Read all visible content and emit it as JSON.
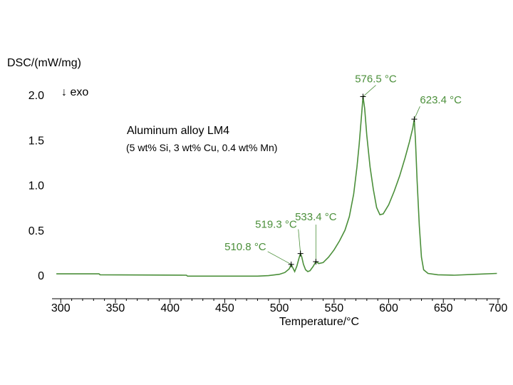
{
  "chart_data": {
    "type": "line",
    "ylabel": "DSC/(mW/mg)",
    "xlabel": "Temperature/°C",
    "exo_label": "↓ exo",
    "note_title": "Aluminum alloy LM4",
    "note_subtitle": "(5 wt% Si, 3 wt% Cu, 0.4 wt% Mn)",
    "xlim": [
      292,
      702
    ],
    "ylim": [
      -0.25,
      2.1
    ],
    "x_ticks": [
      300,
      350,
      400,
      450,
      500,
      550,
      600,
      650,
      700
    ],
    "y_ticks": [
      {
        "value": 0,
        "label": "0"
      },
      {
        "value": 0.5,
        "label": "0.5"
      },
      {
        "value": 1.0,
        "label": "1.0"
      },
      {
        "value": 1.5,
        "label": "1.5"
      },
      {
        "value": 2.0,
        "label": "2.0"
      }
    ],
    "grid": false,
    "line_color": "#4b8f3a",
    "series": [
      {
        "points": [
          [
            296,
            0.015
          ],
          [
            335,
            0.015
          ],
          [
            336,
            0.005
          ],
          [
            415,
            0.0
          ],
          [
            416,
            -0.01
          ],
          [
            480,
            -0.01
          ],
          [
            490,
            -0.005
          ],
          [
            500,
            0.01
          ],
          [
            505,
            0.03
          ],
          [
            509,
            0.07
          ],
          [
            510.8,
            0.12
          ],
          [
            512,
            0.09
          ],
          [
            514,
            0.04
          ],
          [
            516,
            0.1
          ],
          [
            518,
            0.19
          ],
          [
            519.3,
            0.24
          ],
          [
            520.5,
            0.2
          ],
          [
            522,
            0.12
          ],
          [
            524,
            0.06
          ],
          [
            526,
            0.04
          ],
          [
            528,
            0.05
          ],
          [
            531,
            0.1
          ],
          [
            533.4,
            0.15
          ],
          [
            536,
            0.13
          ],
          [
            540,
            0.14
          ],
          [
            545,
            0.2
          ],
          [
            550,
            0.28
          ],
          [
            555,
            0.38
          ],
          [
            560,
            0.5
          ],
          [
            564,
            0.65
          ],
          [
            568,
            0.9
          ],
          [
            571,
            1.2
          ],
          [
            573,
            1.45
          ],
          [
            575,
            1.75
          ],
          [
            576.5,
            1.98
          ],
          [
            578,
            1.85
          ],
          [
            580,
            1.55
          ],
          [
            583,
            1.2
          ],
          [
            586,
            0.95
          ],
          [
            589,
            0.75
          ],
          [
            592,
            0.67
          ],
          [
            595,
            0.68
          ],
          [
            600,
            0.78
          ],
          [
            605,
            0.93
          ],
          [
            610,
            1.1
          ],
          [
            615,
            1.3
          ],
          [
            619,
            1.48
          ],
          [
            622,
            1.63
          ],
          [
            623.4,
            1.73
          ],
          [
            624.5,
            1.5
          ],
          [
            626,
            1.05
          ],
          [
            628,
            0.55
          ],
          [
            630,
            0.2
          ],
          [
            632,
            0.06
          ],
          [
            636,
            0.02
          ],
          [
            645,
            0.005
          ],
          [
            660,
            0.0
          ],
          [
            680,
            0.01
          ],
          [
            699,
            0.02
          ]
        ]
      }
    ],
    "annotations": [
      {
        "label": "510.8 °C",
        "x": 510.8,
        "y": 0.12
      },
      {
        "label": "519.3 °C",
        "x": 519.3,
        "y": 0.24
      },
      {
        "label": "533.4 °C",
        "x": 533.4,
        "y": 0.15
      },
      {
        "label": "576.5 °C",
        "x": 576.5,
        "y": 1.98
      },
      {
        "label": "623.4 °C",
        "x": 623.4,
        "y": 1.73
      }
    ]
  }
}
